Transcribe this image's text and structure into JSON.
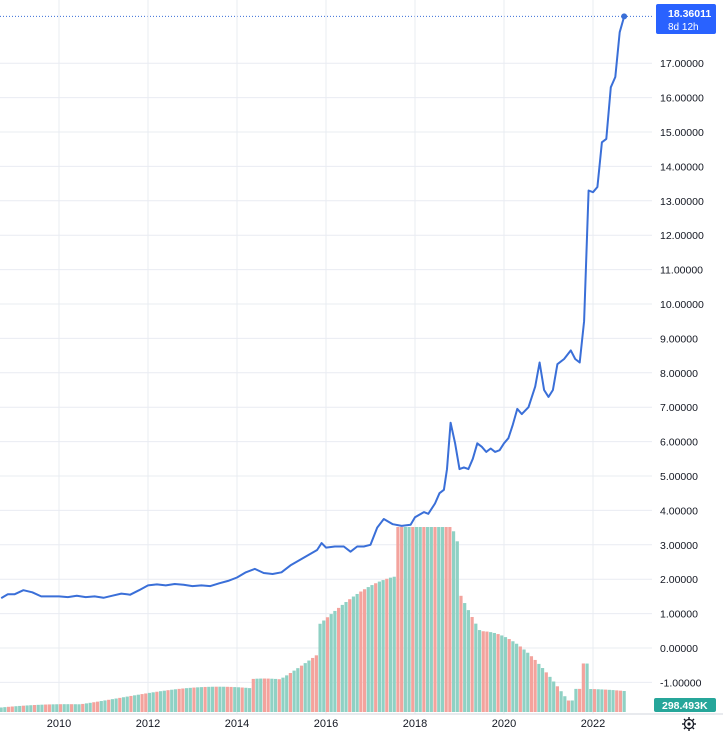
{
  "chart_data": {
    "type": "line",
    "title": "",
    "xlabel": "",
    "ylabel": "",
    "ylim": [
      -1.6,
      18.5
    ],
    "y_ticks": [
      "18.36011",
      "17.00000",
      "16.00000",
      "15.00000",
      "14.00000",
      "13.00000",
      "12.00000",
      "11.00000",
      "10.00000",
      "9.00000",
      "8.00000",
      "7.00000",
      "6.00000",
      "5.00000",
      "4.00000",
      "3.00000",
      "2.00000",
      "1.00000",
      "0.00000",
      "-1.00000"
    ],
    "x_ticks": [
      "2010",
      "2012",
      "2014",
      "2016",
      "2018",
      "2020",
      "2022"
    ],
    "grid": true,
    "last_value_label": "18.36011",
    "countdown_label": "8d 12h",
    "volume_label": "298.493K",
    "colors": {
      "line": "#3a6fd8",
      "badge": "#2962ff",
      "volume_up": "#8fd1c4",
      "volume_down": "#f3a39d",
      "volume_badge": "#26a69a",
      "grid": "#e9ecf2"
    },
    "series": [
      {
        "values": [
          [
            2008.7,
            1.45
          ],
          [
            2008.85,
            1.56
          ],
          [
            2009.0,
            1.56
          ],
          [
            2009.2,
            1.68
          ],
          [
            2009.4,
            1.62
          ],
          [
            2009.6,
            1.5
          ],
          [
            2009.8,
            1.5
          ],
          [
            2010.0,
            1.5
          ],
          [
            2010.2,
            1.48
          ],
          [
            2010.4,
            1.52
          ],
          [
            2010.6,
            1.48
          ],
          [
            2010.8,
            1.5
          ],
          [
            2011.0,
            1.46
          ],
          [
            2011.2,
            1.52
          ],
          [
            2011.4,
            1.58
          ],
          [
            2011.6,
            1.55
          ],
          [
            2011.8,
            1.68
          ],
          [
            2012.0,
            1.82
          ],
          [
            2012.2,
            1.85
          ],
          [
            2012.4,
            1.82
          ],
          [
            2012.6,
            1.86
          ],
          [
            2012.8,
            1.84
          ],
          [
            2013.0,
            1.8
          ],
          [
            2013.2,
            1.82
          ],
          [
            2013.4,
            1.8
          ],
          [
            2013.6,
            1.88
          ],
          [
            2013.8,
            1.95
          ],
          [
            2014.0,
            2.05
          ],
          [
            2014.2,
            2.2
          ],
          [
            2014.4,
            2.3
          ],
          [
            2014.6,
            2.18
          ],
          [
            2014.8,
            2.15
          ],
          [
            2015.0,
            2.2
          ],
          [
            2015.2,
            2.4
          ],
          [
            2015.4,
            2.55
          ],
          [
            2015.6,
            2.7
          ],
          [
            2015.8,
            2.85
          ],
          [
            2015.9,
            3.05
          ],
          [
            2016.0,
            2.92
          ],
          [
            2016.2,
            2.95
          ],
          [
            2016.4,
            2.95
          ],
          [
            2016.55,
            2.8
          ],
          [
            2016.7,
            2.95
          ],
          [
            2016.85,
            2.95
          ],
          [
            2017.0,
            3.0
          ],
          [
            2017.15,
            3.5
          ],
          [
            2017.3,
            3.75
          ],
          [
            2017.5,
            3.6
          ],
          [
            2017.7,
            3.55
          ],
          [
            2017.9,
            3.58
          ],
          [
            2018.0,
            3.8
          ],
          [
            2018.2,
            3.95
          ],
          [
            2018.3,
            3.9
          ],
          [
            2018.45,
            4.2
          ],
          [
            2018.55,
            4.5
          ],
          [
            2018.65,
            4.6
          ],
          [
            2018.72,
            5.2
          ],
          [
            2018.8,
            6.55
          ],
          [
            2018.9,
            5.95
          ],
          [
            2019.0,
            5.2
          ],
          [
            2019.1,
            5.25
          ],
          [
            2019.2,
            5.2
          ],
          [
            2019.3,
            5.5
          ],
          [
            2019.4,
            5.95
          ],
          [
            2019.5,
            5.85
          ],
          [
            2019.6,
            5.7
          ],
          [
            2019.7,
            5.8
          ],
          [
            2019.8,
            5.7
          ],
          [
            2019.9,
            5.75
          ],
          [
            2020.0,
            5.95
          ],
          [
            2020.1,
            6.1
          ],
          [
            2020.2,
            6.5
          ],
          [
            2020.3,
            6.95
          ],
          [
            2020.4,
            6.8
          ],
          [
            2020.55,
            7.0
          ],
          [
            2020.7,
            7.6
          ],
          [
            2020.8,
            8.3
          ],
          [
            2020.9,
            7.5
          ],
          [
            2021.0,
            7.3
          ],
          [
            2021.1,
            7.5
          ],
          [
            2021.2,
            8.25
          ],
          [
            2021.35,
            8.4
          ],
          [
            2021.5,
            8.65
          ],
          [
            2021.6,
            8.4
          ],
          [
            2021.7,
            8.3
          ],
          [
            2021.8,
            9.5
          ],
          [
            2021.9,
            13.3
          ],
          [
            2022.0,
            13.25
          ],
          [
            2022.1,
            13.4
          ],
          [
            2022.2,
            14.7
          ],
          [
            2022.3,
            14.8
          ],
          [
            2022.4,
            16.3
          ],
          [
            2022.5,
            16.6
          ],
          [
            2022.6,
            17.9
          ],
          [
            2022.7,
            18.36
          ]
        ]
      }
    ]
  }
}
